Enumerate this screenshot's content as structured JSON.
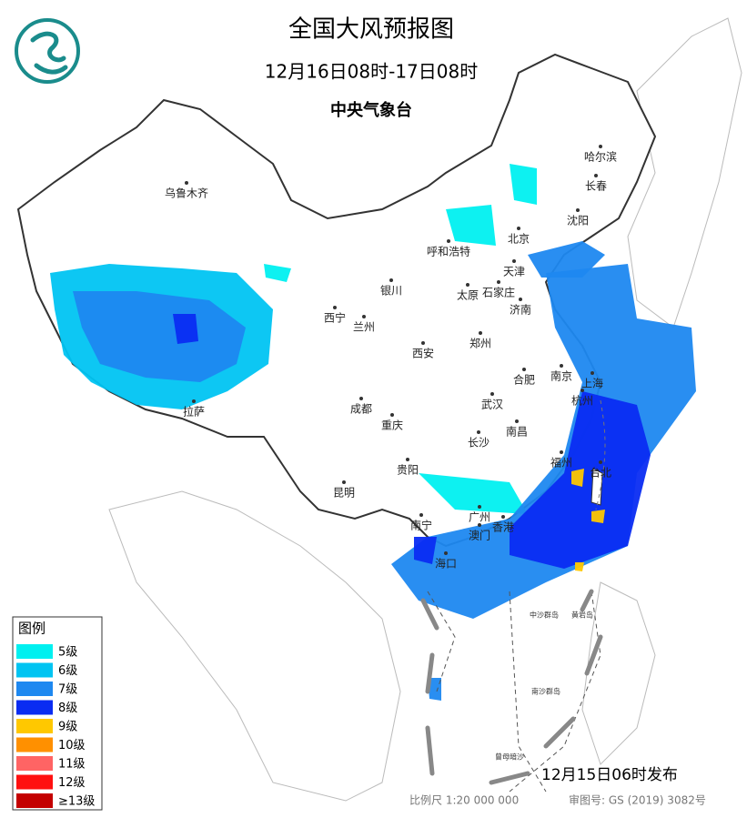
{
  "header": {
    "title": "全国大风预报图",
    "period": "12月16日08时-17日08时",
    "agency": "中央气象台"
  },
  "legend": {
    "title": "图例",
    "items": [
      {
        "label": "5级",
        "color": "#00f0f0"
      },
      {
        "label": "6级",
        "color": "#00c4f2"
      },
      {
        "label": "7级",
        "color": "#1e88f0"
      },
      {
        "label": "8级",
        "color": "#0a2cf2"
      },
      {
        "label": "9级",
        "color": "#ffc800"
      },
      {
        "label": "10级",
        "color": "#ff9000"
      },
      {
        "label": "11级",
        "color": "#ff6464"
      },
      {
        "label": "12级",
        "color": "#ff1010"
      },
      {
        "label": "≥13级",
        "color": "#c40000"
      }
    ]
  },
  "cities": [
    "乌鲁木齐",
    "哈尔滨",
    "长春",
    "沈阳",
    "北京",
    "天津",
    "呼和浩特",
    "银川",
    "太原",
    "石家庄",
    "济南",
    "西宁",
    "兰州",
    "郑州",
    "西安",
    "南京",
    "上海",
    "合肥",
    "杭州",
    "武汉",
    "拉萨",
    "成都",
    "重庆",
    "南昌",
    "长沙",
    "福州",
    "台北",
    "贵阳",
    "昆明",
    "南宁",
    "广州",
    "澳门",
    "香港",
    "海口"
  ],
  "islands": [
    "中沙群岛",
    "黄岩岛",
    "南沙群岛",
    "曾母暗沙"
  ],
  "footer": {
    "issued": "12月15日06时发布",
    "scale": "比例尺 1:20 000 000",
    "approval": "审图号: GS (2019) 3082号"
  }
}
